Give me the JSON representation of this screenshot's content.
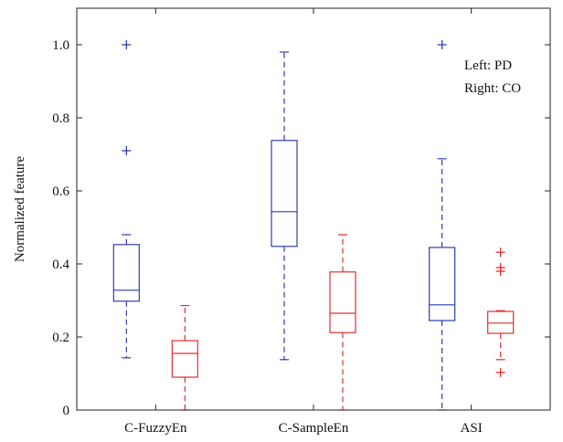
{
  "chart_data": {
    "type": "box",
    "categories": [
      "C-FuzzyEn",
      "C-SampleEn",
      "ASI"
    ],
    "ylabel": "Normalized feature",
    "ylim": [
      0,
      1.1
    ],
    "yticks": [
      0,
      0.2,
      0.4,
      0.6,
      0.8,
      1.0
    ],
    "ytick_labels": [
      "0",
      "0.2",
      "0.4",
      "0.6",
      "0.8",
      "1.0"
    ],
    "legend_text": [
      "Left: PD",
      "Right: CO"
    ],
    "legend_position": "top-right",
    "grid": false,
    "series": [
      {
        "color": "#2E3FA8",
        "boxes": [
          {
            "category": "C-FuzzyEn",
            "whisker_low": 0.143,
            "q1": 0.298,
            "median": 0.328,
            "q3": 0.453,
            "whisker_high": 0.48,
            "outliers": [
              0.71,
              1.0
            ]
          },
          {
            "category": "C-SampleEn",
            "whisker_low": 0.138,
            "q1": 0.448,
            "median": 0.543,
            "q3": 0.738,
            "whisker_high": 0.98,
            "outliers": []
          },
          {
            "category": "ASI",
            "whisker_low": 0.0,
            "q1": 0.245,
            "median": 0.288,
            "q3": 0.445,
            "whisker_high": 0.688,
            "outliers": [
              1.0
            ]
          }
        ]
      },
      {
        "color": "#E03030",
        "boxes": [
          {
            "category": "C-FuzzyEn",
            "whisker_low": 0.0,
            "q1": 0.09,
            "median": 0.155,
            "q3": 0.19,
            "whisker_high": 0.286,
            "outliers": []
          },
          {
            "category": "C-SampleEn",
            "whisker_low": 0.0,
            "q1": 0.212,
            "median": 0.265,
            "q3": 0.378,
            "whisker_high": 0.48,
            "outliers": []
          },
          {
            "category": "ASI",
            "whisker_low": 0.138,
            "q1": 0.21,
            "median": 0.238,
            "q3": 0.27,
            "whisker_high": 0.272,
            "outliers": [
              0.103,
              0.38,
              0.39,
              0.432
            ]
          }
        ]
      }
    ]
  }
}
